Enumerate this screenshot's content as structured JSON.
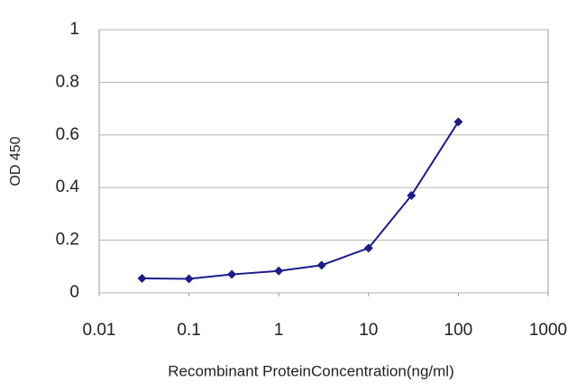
{
  "chart_data": {
    "type": "line",
    "x_label": "Recombinant ProteinConcentration(ng/ml)",
    "y_label": "OD 450",
    "x": [
      0.03,
      0.1,
      0.3,
      1,
      3,
      10,
      30,
      100
    ],
    "series": [
      {
        "color": "#1c1c8a",
        "values": [
          0.055,
          0.053,
          0.07,
          0.083,
          0.105,
          0.17,
          0.37,
          0.65
        ]
      }
    ],
    "x_scale": "log",
    "xlim": [
      0.01,
      1000
    ],
    "xticks": [
      0.01,
      0.1,
      1,
      10,
      100,
      1000
    ],
    "ylim": [
      0,
      1
    ],
    "yticks": [
      0,
      0.2,
      0.4,
      0.6,
      0.8,
      1
    ],
    "grid": true
  }
}
